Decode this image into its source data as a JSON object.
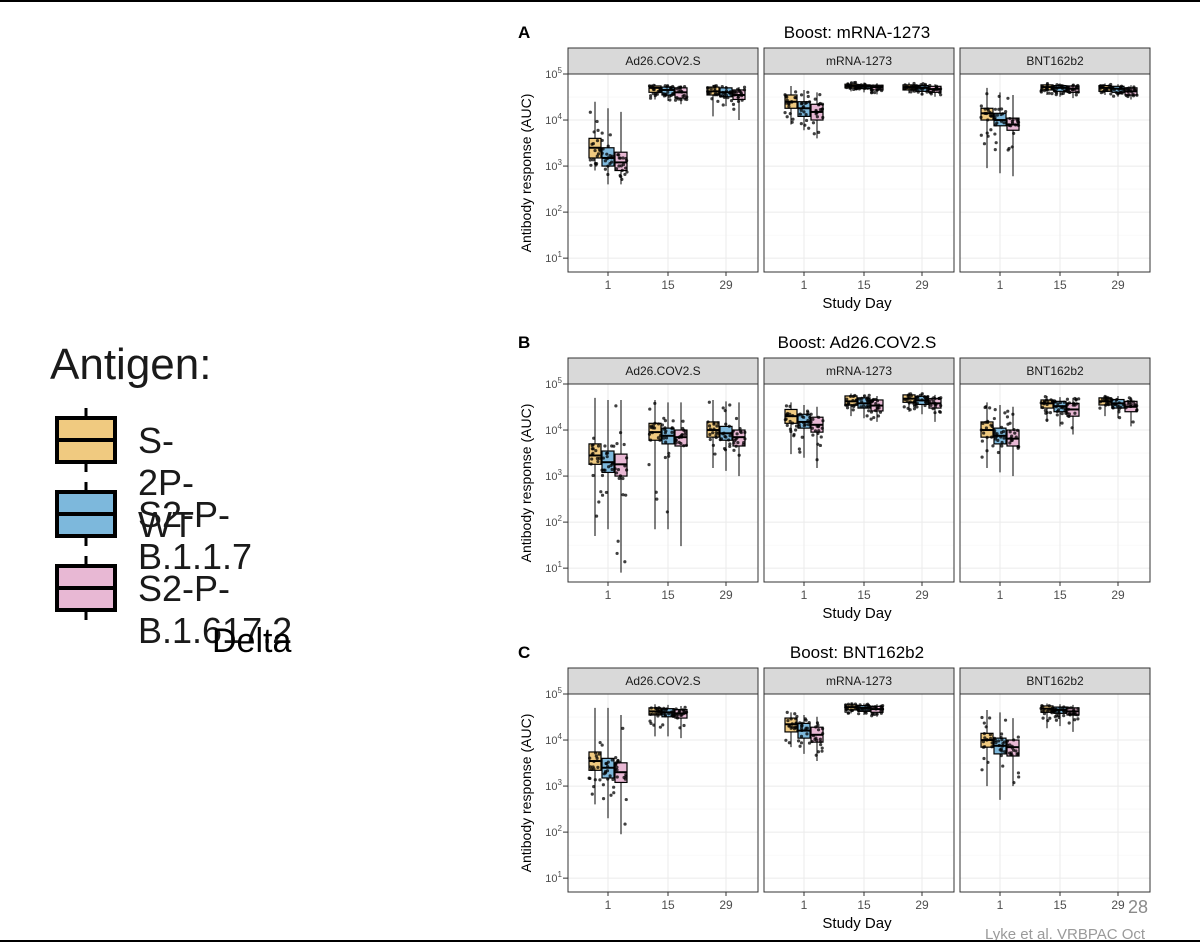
{
  "legend": {
    "title": "Antigen:",
    "items": [
      {
        "label": "S-2P-WT",
        "color": "#F0CA80"
      },
      {
        "label": "S2-P-B.1.1.7",
        "color": "#7DB8DC"
      },
      {
        "label": "S2-P-B.1.617.2",
        "color": "#E8B8D4"
      }
    ],
    "note": "Delta"
  },
  "page_number": "28",
  "citation": "Lyke et al.  VRBPAC Oct",
  "chart_data": [
    {
      "type": "box",
      "label": "A",
      "title": "Boost: mRNA-1273",
      "xlabel": "Study Day",
      "ylabel": "Antibody response (AUC)",
      "yscale": "log10",
      "ylim": [
        5,
        100000
      ],
      "yticks": [
        "10^1",
        "10^2",
        "10^3",
        "10^4",
        "10^5"
      ],
      "xticks": [
        "1",
        "15",
        "29"
      ],
      "facets": [
        {
          "name": "Ad26.COV2.S",
          "boxes": [
            {
              "day": "1",
              "antigen": "S-2P-WT",
              "q1": 1500,
              "median": 2500,
              "q3": 4000,
              "min": 800,
              "max": 25000
            },
            {
              "day": "1",
              "antigen": "S2-P-B.1.1.7",
              "q1": 1000,
              "median": 1500,
              "q3": 2500,
              "min": 400,
              "max": 18000
            },
            {
              "day": "1",
              "antigen": "S2-P-B.1.617.2",
              "q1": 800,
              "median": 1200,
              "q3": 2000,
              "min": 400,
              "max": 15000
            },
            {
              "day": "15",
              "antigen": "S-2P-WT",
              "q1": 40000,
              "median": 50000,
              "q3": 55000,
              "min": 28000,
              "max": 60000
            },
            {
              "day": "15",
              "antigen": "S2-P-B.1.1.7",
              "q1": 35000,
              "median": 45000,
              "q3": 52000,
              "min": 26000,
              "max": 58000
            },
            {
              "day": "15",
              "antigen": "S2-P-B.1.617.2",
              "q1": 30000,
              "median": 40000,
              "q3": 50000,
              "min": 22000,
              "max": 55000
            },
            {
              "day": "29",
              "antigen": "S-2P-WT",
              "q1": 35000,
              "median": 42000,
              "q3": 52000,
              "min": 12000,
              "max": 58000
            },
            {
              "day": "29",
              "antigen": "S2-P-B.1.1.7",
              "q1": 32000,
              "median": 40000,
              "q3": 50000,
              "min": 20000,
              "max": 55000
            },
            {
              "day": "29",
              "antigen": "S2-P-B.1.617.2",
              "q1": 28000,
              "median": 35000,
              "q3": 45000,
              "min": 10000,
              "max": 52000
            }
          ]
        },
        {
          "name": "mRNA-1273",
          "boxes": [
            {
              "day": "1",
              "antigen": "S-2P-WT",
              "q1": 18000,
              "median": 25000,
              "q3": 35000,
              "min": 8000,
              "max": 55000
            },
            {
              "day": "1",
              "antigen": "S2-P-B.1.1.7",
              "q1": 12000,
              "median": 18000,
              "q3": 25000,
              "min": 6000,
              "max": 45000
            },
            {
              "day": "1",
              "antigen": "S2-P-B.1.617.2",
              "q1": 10000,
              "median": 15000,
              "q3": 22000,
              "min": 4000,
              "max": 40000
            },
            {
              "day": "15",
              "antigen": "S-2P-WT",
              "q1": 50000,
              "median": 55000,
              "q3": 60000,
              "min": 42000,
              "max": 68000
            },
            {
              "day": "15",
              "antigen": "S2-P-B.1.1.7",
              "q1": 48000,
              "median": 54000,
              "q3": 58000,
              "min": 40000,
              "max": 65000
            },
            {
              "day": "15",
              "antigen": "S2-P-B.1.617.2",
              "q1": 45000,
              "median": 52000,
              "q3": 57000,
              "min": 36000,
              "max": 63000
            },
            {
              "day": "29",
              "antigen": "S-2P-WT",
              "q1": 45000,
              "median": 52000,
              "q3": 58000,
              "min": 38000,
              "max": 65000
            },
            {
              "day": "29",
              "antigen": "S2-P-B.1.1.7",
              "q1": 42000,
              "median": 50000,
              "q3": 56000,
              "min": 35000,
              "max": 62000
            },
            {
              "day": "29",
              "antigen": "S2-P-B.1.617.2",
              "q1": 40000,
              "median": 47000,
              "q3": 54000,
              "min": 32000,
              "max": 60000
            }
          ]
        },
        {
          "name": "BNT162b2",
          "boxes": [
            {
              "day": "1",
              "antigen": "S-2P-WT",
              "q1": 10000,
              "median": 14000,
              "q3": 18000,
              "min": 900,
              "max": 50000
            },
            {
              "day": "1",
              "antigen": "S2-P-B.1.1.7",
              "q1": 7500,
              "median": 10000,
              "q3": 14000,
              "min": 700,
              "max": 40000
            },
            {
              "day": "1",
              "antigen": "S2-P-B.1.617.2",
              "q1": 6000,
              "median": 8000,
              "q3": 11000,
              "min": 600,
              "max": 35000
            },
            {
              "day": "15",
              "antigen": "S-2P-WT",
              "q1": 45000,
              "median": 52000,
              "q3": 58000,
              "min": 35000,
              "max": 65000
            },
            {
              "day": "15",
              "antigen": "S2-P-B.1.1.7",
              "q1": 42000,
              "median": 50000,
              "q3": 56000,
              "min": 32000,
              "max": 62000
            },
            {
              "day": "15",
              "antigen": "S2-P-B.1.617.2",
              "q1": 40000,
              "median": 48000,
              "q3": 55000,
              "min": 30000,
              "max": 60000
            },
            {
              "day": "29",
              "antigen": "S-2P-WT",
              "q1": 42000,
              "median": 50000,
              "q3": 56000,
              "min": 35000,
              "max": 62000
            },
            {
              "day": "29",
              "antigen": "S2-P-B.1.1.7",
              "q1": 40000,
              "median": 48000,
              "q3": 54000,
              "min": 32000,
              "max": 60000
            },
            {
              "day": "29",
              "antigen": "S2-P-B.1.617.2",
              "q1": 35000,
              "median": 42000,
              "q3": 50000,
              "min": 28000,
              "max": 57000
            }
          ]
        }
      ]
    },
    {
      "type": "box",
      "label": "B",
      "title": "Boost: Ad26.COV2.S",
      "xlabel": "Study Day",
      "ylabel": "Antibody response (AUC)",
      "yscale": "log10",
      "ylim": [
        5,
        100000
      ],
      "yticks": [
        "10^1",
        "10^2",
        "10^3",
        "10^4",
        "10^5"
      ],
      "xticks": [
        "1",
        "15",
        "29"
      ],
      "facets": [
        {
          "name": "Ad26.COV2.S",
          "boxes": [
            {
              "day": "1",
              "antigen": "S-2P-WT",
              "q1": 1800,
              "median": 2800,
              "q3": 5000,
              "min": 50,
              "max": 50000
            },
            {
              "day": "1",
              "antigen": "S2-P-B.1.1.7",
              "q1": 1200,
              "median": 2000,
              "q3": 3500,
              "min": 70,
              "max": 45000
            },
            {
              "day": "1",
              "antigen": "S2-P-B.1.617.2",
              "q1": 1000,
              "median": 1800,
              "q3": 3000,
              "min": 8,
              "max": 45000
            },
            {
              "day": "15",
              "antigen": "S-2P-WT",
              "q1": 6000,
              "median": 9000,
              "q3": 14000,
              "min": 70,
              "max": 45000
            },
            {
              "day": "15",
              "antigen": "S2-P-B.1.1.7",
              "q1": 5000,
              "median": 7500,
              "q3": 11000,
              "min": 70,
              "max": 40000
            },
            {
              "day": "15",
              "antigen": "S2-P-B.1.617.2",
              "q1": 4500,
              "median": 7000,
              "q3": 10000,
              "min": 30,
              "max": 40000
            },
            {
              "day": "29",
              "antigen": "S-2P-WT",
              "q1": 7000,
              "median": 10000,
              "q3": 15000,
              "min": 1500,
              "max": 45000
            },
            {
              "day": "29",
              "antigen": "S2-P-B.1.1.7",
              "q1": 6000,
              "median": 8500,
              "q3": 12000,
              "min": 1300,
              "max": 42000
            },
            {
              "day": "29",
              "antigen": "S2-P-B.1.617.2",
              "q1": 4500,
              "median": 7000,
              "q3": 10000,
              "min": 1000,
              "max": 40000
            }
          ]
        },
        {
          "name": "mRNA-1273",
          "boxes": [
            {
              "day": "1",
              "antigen": "S-2P-WT",
              "q1": 14000,
              "median": 20000,
              "q3": 28000,
              "min": 3000,
              "max": 40000
            },
            {
              "day": "1",
              "antigen": "S2-P-B.1.1.7",
              "q1": 11000,
              "median": 15000,
              "q3": 22000,
              "min": 2500,
              "max": 35000
            },
            {
              "day": "1",
              "antigen": "S2-P-B.1.617.2",
              "q1": 9000,
              "median": 13000,
              "q3": 19000,
              "min": 1500,
              "max": 32000
            },
            {
              "day": "15",
              "antigen": "S-2P-WT",
              "q1": 35000,
              "median": 42000,
              "q3": 55000,
              "min": 20000,
              "max": 62000
            },
            {
              "day": "15",
              "antigen": "S2-P-B.1.1.7",
              "q1": 30000,
              "median": 38000,
              "q3": 50000,
              "min": 18000,
              "max": 58000
            },
            {
              "day": "15",
              "antigen": "S2-P-B.1.617.2",
              "q1": 26000,
              "median": 34000,
              "q3": 45000,
              "min": 15000,
              "max": 55000
            },
            {
              "day": "29",
              "antigen": "S-2P-WT",
              "q1": 40000,
              "median": 48000,
              "q3": 58000,
              "min": 25000,
              "max": 65000
            },
            {
              "day": "29",
              "antigen": "S2-P-B.1.1.7",
              "q1": 36000,
              "median": 44000,
              "q3": 54000,
              "min": 22000,
              "max": 62000
            },
            {
              "day": "29",
              "antigen": "S2-P-B.1.617.2",
              "q1": 30000,
              "median": 38000,
              "q3": 48000,
              "min": 15000,
              "max": 58000
            }
          ]
        },
        {
          "name": "BNT162b2",
          "boxes": [
            {
              "day": "1",
              "antigen": "S-2P-WT",
              "q1": 7000,
              "median": 10000,
              "q3": 15000,
              "min": 1500,
              "max": 40000
            },
            {
              "day": "1",
              "antigen": "S2-P-B.1.1.7",
              "q1": 5000,
              "median": 7500,
              "q3": 11000,
              "min": 1200,
              "max": 35000
            },
            {
              "day": "1",
              "antigen": "S2-P-B.1.617.2",
              "q1": 4500,
              "median": 6500,
              "q3": 10000,
              "min": 1000,
              "max": 32000
            },
            {
              "day": "15",
              "antigen": "S-2P-WT",
              "q1": 30000,
              "median": 38000,
              "q3": 45000,
              "min": 15000,
              "max": 55000
            },
            {
              "day": "15",
              "antigen": "S2-P-B.1.1.7",
              "q1": 25000,
              "median": 33000,
              "q3": 42000,
              "min": 12000,
              "max": 52000
            },
            {
              "day": "15",
              "antigen": "S2-P-B.1.617.2",
              "q1": 20000,
              "median": 28000,
              "q3": 38000,
              "min": 8000,
              "max": 50000
            },
            {
              "day": "29",
              "antigen": "S-2P-WT",
              "q1": 35000,
              "median": 42000,
              "q3": 50000,
              "min": 20000,
              "max": 58000
            },
            {
              "day": "29",
              "antigen": "S2-P-B.1.1.7",
              "q1": 30000,
              "median": 38000,
              "q3": 46000,
              "min": 18000,
              "max": 55000
            },
            {
              "day": "29",
              "antigen": "S2-P-B.1.617.2",
              "q1": 25000,
              "median": 32000,
              "q3": 42000,
              "min": 12000,
              "max": 52000
            }
          ]
        }
      ]
    },
    {
      "type": "box",
      "label": "C",
      "title": "Boost: BNT162b2",
      "xlabel": "Study Day",
      "ylabel": "Antibody response (AUC)",
      "yscale": "log10",
      "ylim": [
        5,
        100000
      ],
      "yticks": [
        "10^1",
        "10^2",
        "10^3",
        "10^4",
        "10^5"
      ],
      "xticks": [
        "1",
        "15",
        "29"
      ],
      "facets": [
        {
          "name": "Ad26.COV2.S",
          "boxes": [
            {
              "day": "1",
              "antigen": "S-2P-WT",
              "q1": 2200,
              "median": 3500,
              "q3": 5500,
              "min": 400,
              "max": 50000
            },
            {
              "day": "1",
              "antigen": "S2-P-B.1.1.7",
              "q1": 1500,
              "median": 2500,
              "q3": 4000,
              "min": 200,
              "max": 50000
            },
            {
              "day": "1",
              "antigen": "S2-P-B.1.617.2",
              "q1": 1200,
              "median": 2000,
              "q3": 3200,
              "min": 90,
              "max": 35000
            },
            {
              "day": "15",
              "antigen": "S-2P-WT",
              "q1": 35000,
              "median": 42000,
              "q3": 50000,
              "min": 12000,
              "max": 60000
            },
            {
              "day": "15",
              "antigen": "S2-P-B.1.1.7",
              "q1": 32000,
              "median": 40000,
              "q3": 48000,
              "min": 12000,
              "max": 58000
            },
            {
              "day": "15",
              "antigen": "S2-P-B.1.617.2",
              "q1": 30000,
              "median": 38000,
              "q3": 46000,
              "min": 11000,
              "max": 55000
            }
          ]
        },
        {
          "name": "mRNA-1273",
          "boxes": [
            {
              "day": "1",
              "antigen": "S-2P-WT",
              "q1": 15000,
              "median": 22000,
              "q3": 30000,
              "min": 7000,
              "max": 40000
            },
            {
              "day": "1",
              "antigen": "S2-P-B.1.1.7",
              "q1": 11000,
              "median": 16000,
              "q3": 23000,
              "min": 5000,
              "max": 35000
            },
            {
              "day": "1",
              "antigen": "S2-P-B.1.617.2",
              "q1": 9000,
              "median": 13000,
              "q3": 19000,
              "min": 3500,
              "max": 32000
            },
            {
              "day": "15",
              "antigen": "S-2P-WT",
              "q1": 45000,
              "median": 52000,
              "q3": 58000,
              "min": 38000,
              "max": 65000
            },
            {
              "day": "15",
              "antigen": "S2-P-B.1.1.7",
              "q1": 42000,
              "median": 50000,
              "q3": 56000,
              "min": 35000,
              "max": 62000
            },
            {
              "day": "15",
              "antigen": "S2-P-B.1.617.2",
              "q1": 40000,
              "median": 47000,
              "q3": 54000,
              "min": 32000,
              "max": 60000
            }
          ]
        },
        {
          "name": "BNT162b2",
          "boxes": [
            {
              "day": "1",
              "antigen": "S-2P-WT",
              "q1": 7000,
              "median": 10000,
              "q3": 14000,
              "min": 1000,
              "max": 45000
            },
            {
              "day": "1",
              "antigen": "S2-P-B.1.1.7",
              "q1": 5000,
              "median": 7500,
              "q3": 11000,
              "min": 500,
              "max": 40000
            },
            {
              "day": "1",
              "antigen": "S2-P-B.1.617.2",
              "q1": 4500,
              "median": 7000,
              "q3": 10000,
              "min": 1000,
              "max": 30000
            },
            {
              "day": "15",
              "antigen": "S-2P-WT",
              "q1": 40000,
              "median": 48000,
              "q3": 55000,
              "min": 18000,
              "max": 62000
            },
            {
              "day": "15",
              "antigen": "S2-P-B.1.1.7",
              "q1": 38000,
              "median": 45000,
              "q3": 52000,
              "min": 20000,
              "max": 60000
            },
            {
              "day": "15",
              "antigen": "S2-P-B.1.617.2",
              "q1": 35000,
              "median": 42000,
              "q3": 50000,
              "min": 15000,
              "max": 58000
            }
          ]
        }
      ]
    }
  ]
}
